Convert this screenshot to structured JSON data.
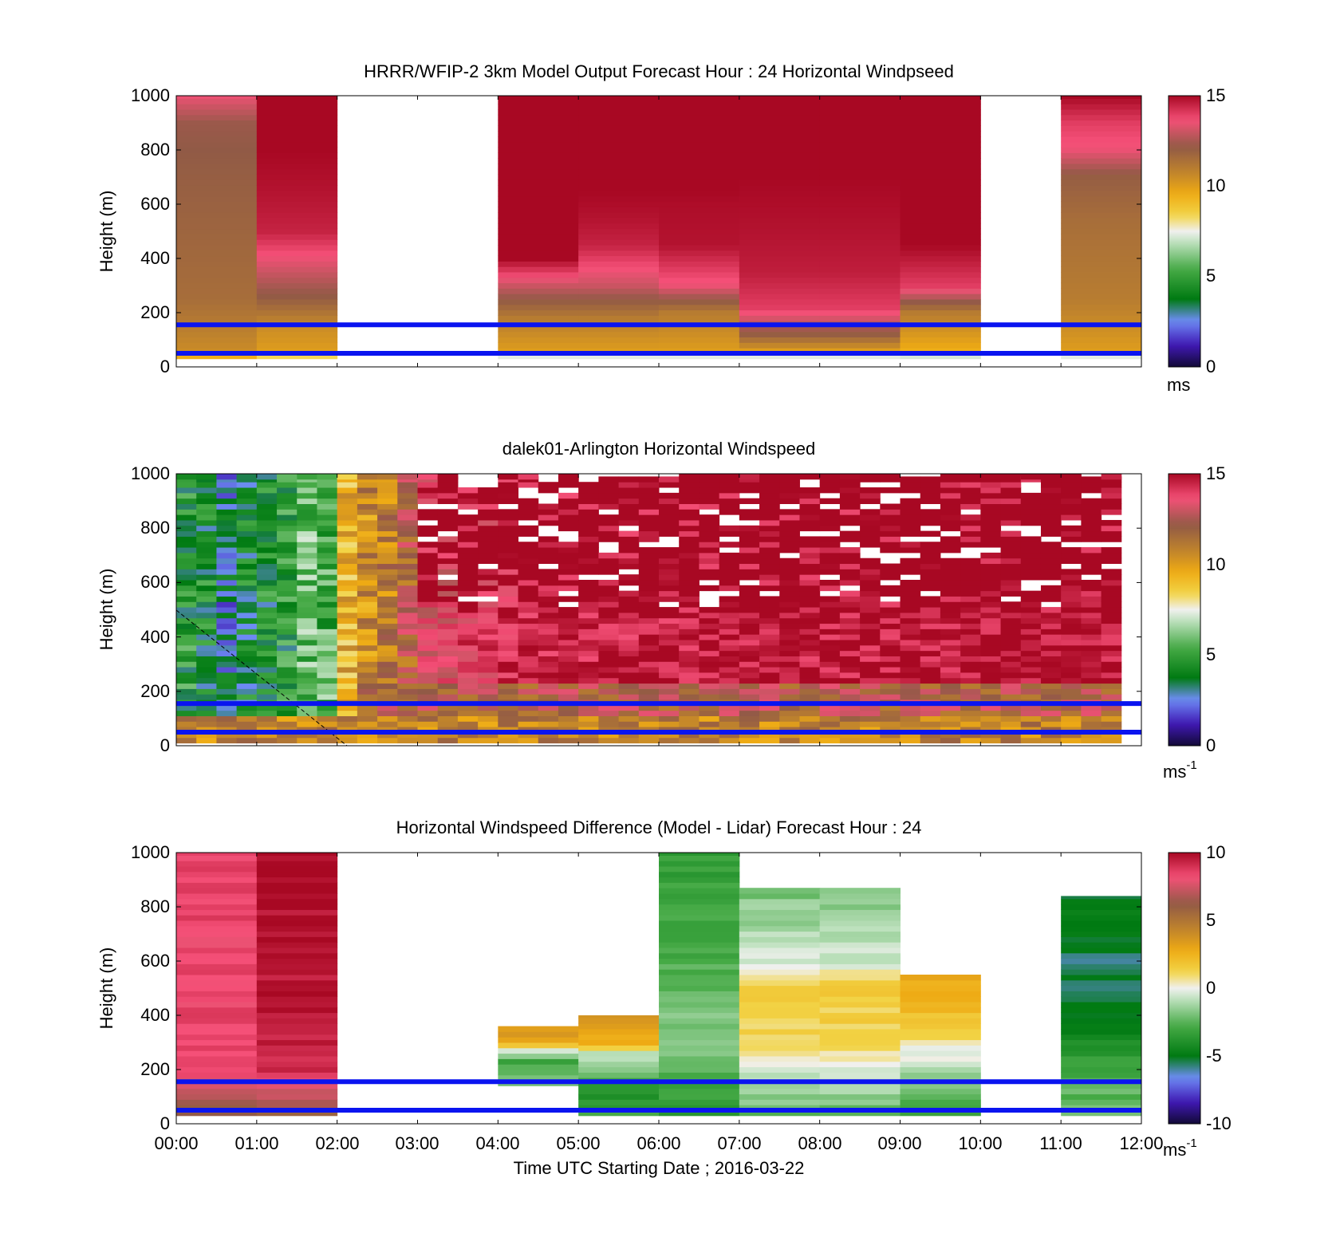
{
  "chart_data": [
    {
      "type": "heatmap",
      "title": "HRRR/WFIP-2 3km Model Output   Forecast Hour : 24 Horizontal Windpseed",
      "ylabel": "Height (m)",
      "yticks": [
        "0",
        "200",
        "400",
        "600",
        "800",
        "1000"
      ],
      "ylim": [
        0,
        1000
      ],
      "xlim": [
        "00:00",
        "12:00"
      ],
      "reference_lines_m": [
        155,
        50
      ],
      "colorbar": {
        "ticks": [
          "0",
          "5",
          "10",
          "15"
        ],
        "range": [
          0,
          15
        ],
        "unit": "ms",
        "unit_sup": ""
      },
      "columns": [
        {
          "start": 0,
          "end": 1,
          "bottom": 30,
          "top": 1000,
          "profile": [
            [
              30,
              9
            ],
            [
              60,
              10.5
            ],
            [
              250,
              11.5
            ],
            [
              700,
              12
            ],
            [
              900,
              12.3
            ],
            [
              1000,
              13.5
            ]
          ]
        },
        {
          "start": 1,
          "end": 2,
          "bottom": 30,
          "top": 1000,
          "profile": [
            [
              30,
              7.5
            ],
            [
              60,
              10
            ],
            [
              150,
              10.5
            ],
            [
              250,
              12
            ],
            [
              350,
              13
            ],
            [
              500,
              14.5
            ],
            [
              650,
              14.8
            ],
            [
              800,
              15
            ],
            [
              1000,
              15
            ]
          ]
        },
        {
          "start": 4,
          "end": 5,
          "bottom": 30,
          "top": 1000,
          "profile": [
            [
              30,
              6
            ],
            [
              60,
              10
            ],
            [
              180,
              11
            ],
            [
              300,
              13
            ],
            [
              400,
              15
            ],
            [
              1000,
              15
            ]
          ]
        },
        {
          "start": 5,
          "end": 6,
          "bottom": 30,
          "top": 1000,
          "profile": [
            [
              30,
              6
            ],
            [
              60,
              10
            ],
            [
              180,
              11
            ],
            [
              300,
              13
            ],
            [
              450,
              14.5
            ],
            [
              550,
              14.8
            ],
            [
              650,
              15
            ],
            [
              1000,
              15
            ]
          ]
        },
        {
          "start": 6,
          "end": 7,
          "bottom": 30,
          "top": 1000,
          "profile": [
            [
              30,
              6
            ],
            [
              60,
              10
            ],
            [
              200,
              11
            ],
            [
              300,
              13.5
            ],
            [
              450,
              14.8
            ],
            [
              600,
              14.9
            ],
            [
              650,
              15
            ],
            [
              1000,
              15
            ]
          ]
        },
        {
          "start": 7,
          "end": 8,
          "bottom": 30,
          "top": 1000,
          "profile": [
            [
              30,
              6
            ],
            [
              60,
              10
            ],
            [
              120,
              12
            ],
            [
              220,
              14
            ],
            [
              350,
              14.6
            ],
            [
              500,
              14.8
            ],
            [
              700,
              15
            ],
            [
              1000,
              15
            ]
          ]
        },
        {
          "start": 8,
          "end": 9,
          "bottom": 30,
          "top": 1000,
          "profile": [
            [
              30,
              6
            ],
            [
              60,
              10
            ],
            [
              120,
              12
            ],
            [
              220,
              14
            ],
            [
              350,
              14.6
            ],
            [
              500,
              14.8
            ],
            [
              700,
              15
            ],
            [
              1000,
              15
            ]
          ]
        },
        {
          "start": 9,
          "end": 10,
          "bottom": 30,
          "top": 1000,
          "profile": [
            [
              30,
              6
            ],
            [
              60,
              9.5
            ],
            [
              200,
              11
            ],
            [
              300,
              14
            ],
            [
              450,
              15
            ],
            [
              1000,
              15
            ]
          ]
        },
        {
          "start": 11,
          "end": 12,
          "bottom": 30,
          "top": 1000,
          "profile": [
            [
              30,
              6
            ],
            [
              60,
              10
            ],
            [
              250,
              11
            ],
            [
              550,
              11.5
            ],
            [
              700,
              12
            ],
            [
              800,
              13.5
            ],
            [
              900,
              14
            ],
            [
              1000,
              15
            ]
          ]
        }
      ]
    },
    {
      "type": "heatmap",
      "title": "dalek01-Arlington  Horizontal Windspeed",
      "ylabel": "Height (m)",
      "yticks": [
        "0",
        "200",
        "400",
        "600",
        "800",
        "1000"
      ],
      "ylim": [
        0,
        1000
      ],
      "xlim": [
        "00:00",
        "12:00"
      ],
      "reference_lines_m": [
        155,
        50
      ],
      "colorbar": {
        "ticks": [
          "0",
          "5",
          "10",
          "15"
        ],
        "range": [
          0,
          15
        ],
        "unit": "ms",
        "unit_sup": "-1"
      },
      "time_step_hours": 0.25,
      "columns_mean_ms": [
        4.5,
        4.2,
        3.0,
        4.0,
        4.2,
        4.5,
        5.8,
        5.5,
        9.5,
        10.5,
        11.0,
        12.0,
        13.5,
        13.5,
        14.0,
        14.0,
        14.2,
        14.3,
        14.4,
        14.5,
        14.5,
        14.5,
        14.5,
        14.6,
        14.6,
        14.6,
        14.6,
        14.6,
        14.6,
        14.7,
        14.7,
        14.7,
        14.7,
        14.7,
        14.7,
        14.7,
        14.7,
        14.7,
        14.7,
        14.8,
        14.8,
        14.8,
        14.8,
        14.8,
        14.8,
        14.8,
        14.8
      ],
      "columns_top_m": [
        1000,
        1000,
        1000,
        1000,
        1000,
        1000,
        1000,
        1000,
        1000,
        1000,
        1000,
        1000,
        1000,
        1000,
        950,
        950,
        1000,
        1000,
        1000,
        1000,
        1000,
        1000,
        1000,
        1000,
        1000,
        1000,
        1000,
        1000,
        1000,
        1000,
        1000,
        1000,
        1000,
        1000,
        1000,
        1000,
        1000,
        1000,
        1000,
        1000,
        1000,
        1000,
        1000,
        1000,
        1000,
        1000,
        1000
      ]
    },
    {
      "type": "heatmap",
      "title": "Horizontal Windspeed Difference (Model - Lidar) Forecast Hour : 24",
      "xlabel": "Time UTC  Starting Date ; 2016-03-22",
      "ylabel": "Height (m)",
      "yticks": [
        "0",
        "200",
        "400",
        "600",
        "800",
        "1000"
      ],
      "xticks": [
        "00:00",
        "01:00",
        "02:00",
        "03:00",
        "04:00",
        "05:00",
        "06:00",
        "07:00",
        "08:00",
        "09:00",
        "10:00",
        "11:00",
        "12:00"
      ],
      "ylim": [
        0,
        1000
      ],
      "xlim": [
        "00:00",
        "12:00"
      ],
      "reference_lines_m": [
        155,
        50
      ],
      "colorbar": {
        "ticks": [
          "-10",
          "-5",
          "0",
          "5",
          "10"
        ],
        "range": [
          -10,
          10
        ],
        "unit": "ms",
        "unit_sup": "-1"
      },
      "columns": [
        {
          "start": 0,
          "end": 1,
          "bottom": 30,
          "top": 1000,
          "profile": [
            [
              30,
              6
            ],
            [
              100,
              6.5
            ],
            [
              160,
              8
            ],
            [
              300,
              8.5
            ],
            [
              600,
              8.3
            ],
            [
              1000,
              8.5
            ]
          ]
        },
        {
          "start": 1,
          "end": 2,
          "bottom": 30,
          "top": 1000,
          "profile": [
            [
              30,
              6
            ],
            [
              120,
              7.5
            ],
            [
              160,
              8.5
            ],
            [
              250,
              9.5
            ],
            [
              1000,
              10
            ]
          ]
        },
        {
          "start": 4,
          "end": 5,
          "bottom": 140,
          "top": 360,
          "profile": [
            [
              140,
              -2
            ],
            [
              240,
              -3
            ],
            [
              300,
              3
            ],
            [
              360,
              3.5
            ]
          ]
        },
        {
          "start": 5,
          "end": 6,
          "bottom": 30,
          "top": 400,
          "profile": [
            [
              30,
              -3
            ],
            [
              100,
              -4
            ],
            [
              200,
              -2
            ],
            [
              260,
              -1
            ],
            [
              300,
              3
            ],
            [
              400,
              3.5
            ]
          ]
        },
        {
          "start": 6,
          "end": 7,
          "bottom": 30,
          "top": 1000,
          "profile": [
            [
              30,
              -4
            ],
            [
              300,
              -1.5
            ],
            [
              500,
              -2.5
            ],
            [
              800,
              -3
            ],
            [
              1000,
              -3.5
            ]
          ]
        },
        {
          "start": 7,
          "end": 8,
          "bottom": 30,
          "top": 870,
          "profile": [
            [
              30,
              -2.5
            ],
            [
              200,
              -0.5
            ],
            [
              300,
              1.2
            ],
            [
              500,
              1.5
            ],
            [
              600,
              -0.5
            ],
            [
              870,
              -2
            ]
          ]
        },
        {
          "start": 8,
          "end": 9,
          "bottom": 30,
          "top": 870,
          "profile": [
            [
              30,
              -2.5
            ],
            [
              200,
              -0.5
            ],
            [
              300,
              1.2
            ],
            [
              500,
              1.5
            ],
            [
              600,
              -0.5
            ],
            [
              870,
              -2
            ]
          ]
        },
        {
          "start": 9,
          "end": 10,
          "bottom": 30,
          "top": 550,
          "profile": [
            [
              30,
              -3
            ],
            [
              200,
              -1
            ],
            [
              350,
              1.5
            ],
            [
              450,
              2.5
            ],
            [
              550,
              3
            ]
          ]
        },
        {
          "start": 11,
          "end": 12,
          "bottom": 30,
          "top": 840,
          "profile": [
            [
              30,
              -2
            ],
            [
              200,
              -3
            ],
            [
              350,
              -5
            ],
            [
              600,
              -5.5
            ],
            [
              840,
              -5
            ]
          ]
        }
      ]
    }
  ]
}
